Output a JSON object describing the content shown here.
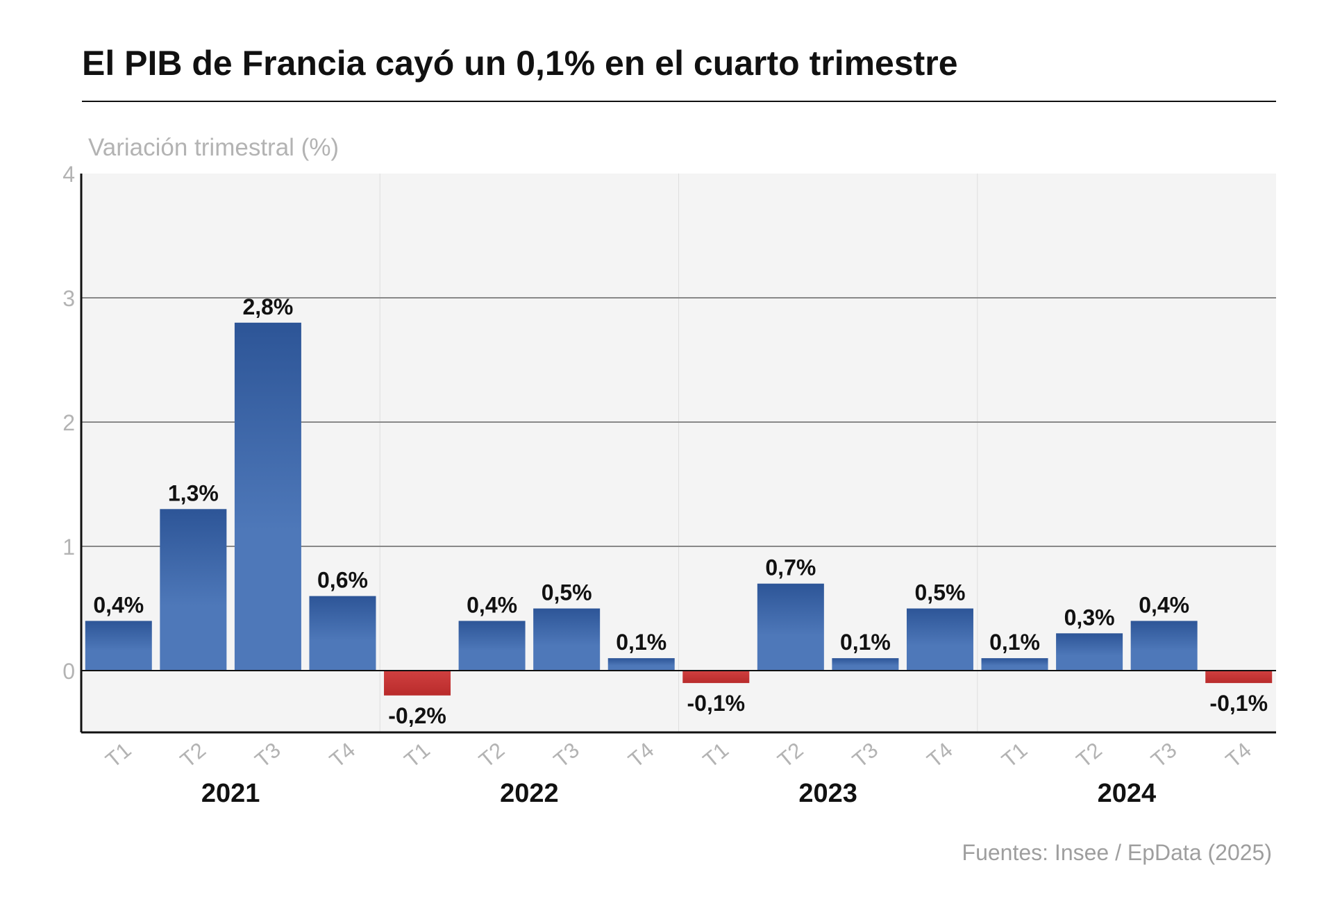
{
  "title": "El PIB de Francia cayó un 0,1% en el cuarto trimestre",
  "source": "Fuentes: Insee / EpData (2025)",
  "colors": {
    "positive_top": "#2d5597",
    "positive_bottom": "#4e78b9",
    "negative": "#b92b2b",
    "plot_background": "#f4f4f4",
    "gridline": "#888888",
    "axis": "#111111",
    "tick_label": "#b3b3b3"
  },
  "chart_data": {
    "type": "bar",
    "ylabel": "Variación trimestral (%)",
    "ylim": [
      -0.5,
      4
    ],
    "yticks": [
      0,
      1,
      2,
      3,
      4
    ],
    "grid": true,
    "categories": [
      "T1",
      "T2",
      "T3",
      "T4",
      "T1",
      "T2",
      "T3",
      "T4",
      "T1",
      "T2",
      "T3",
      "T4",
      "T1",
      "T2",
      "T3",
      "T4"
    ],
    "groups": [
      {
        "label": "2021",
        "size": 4
      },
      {
        "label": "2022",
        "size": 4
      },
      {
        "label": "2023",
        "size": 4
      },
      {
        "label": "2024",
        "size": 4
      }
    ],
    "values": [
      0.4,
      1.3,
      2.8,
      0.6,
      -0.2,
      0.4,
      0.5,
      0.1,
      -0.1,
      0.7,
      0.1,
      0.5,
      0.1,
      0.3,
      0.4,
      -0.1
    ],
    "data_labels": [
      "0,4%",
      "1,3%",
      "2,8%",
      "0,6%",
      "-0,2%",
      "0,4%",
      "0,5%",
      "0,1%",
      "-0,1%",
      "0,7%",
      "0,1%",
      "0,5%",
      "0,1%",
      "0,3%",
      "0,4%",
      "-0,1%"
    ]
  }
}
